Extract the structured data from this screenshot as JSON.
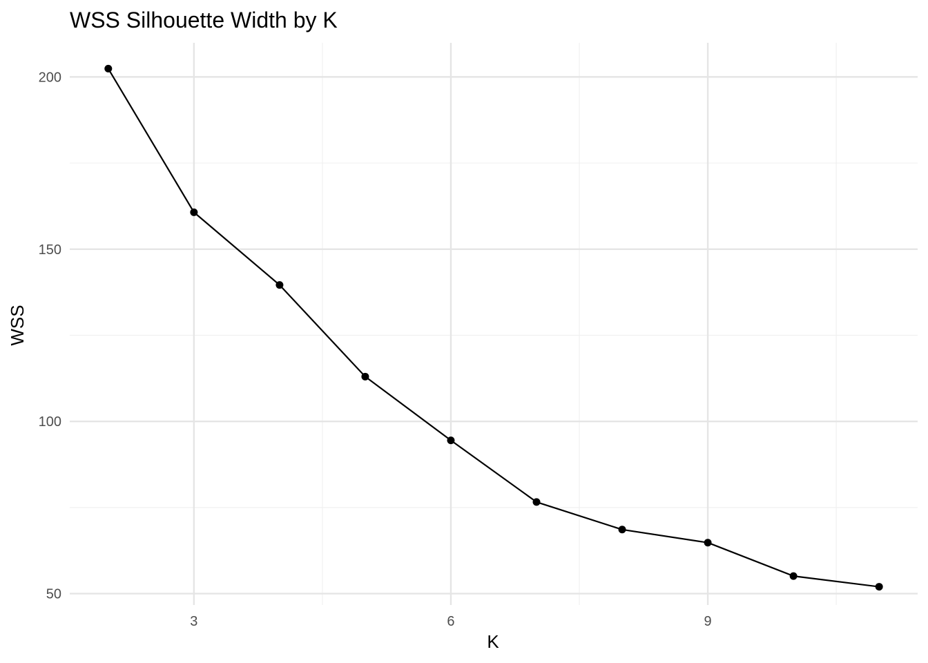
{
  "chart_data": {
    "type": "line",
    "title": "WSS Silhouette Width by K",
    "xlabel": "K",
    "ylabel": "WSS",
    "x": [
      2,
      3,
      4,
      5,
      6,
      7,
      8,
      9,
      10,
      11
    ],
    "series": [
      {
        "values": [
          202.4,
          160.7,
          139.6,
          113.0,
          94.5,
          76.6,
          68.6,
          64.8,
          55.1,
          52.0
        ]
      }
    ],
    "xlim": [
      1.55,
      11.45
    ],
    "ylim": [
      46.7,
      209.9
    ],
    "x_ticks": [
      3,
      6,
      9
    ],
    "x_tick_labels": [
      "3",
      "6",
      "9"
    ],
    "x_minor_ticks": [
      4.5,
      7.5,
      10.5
    ],
    "y_ticks": [
      50,
      100,
      150,
      200
    ],
    "y_tick_labels": [
      "50",
      "100",
      "150",
      "200"
    ],
    "y_minor_ticks": [
      75,
      125,
      175
    ],
    "grid": true,
    "legend": "none",
    "colors": {
      "line": "#000000",
      "points": "#000000",
      "grid_major": "#e5e5e5",
      "grid_minor": "#f0f0f0",
      "tick_text": "#4d4d4d"
    }
  }
}
